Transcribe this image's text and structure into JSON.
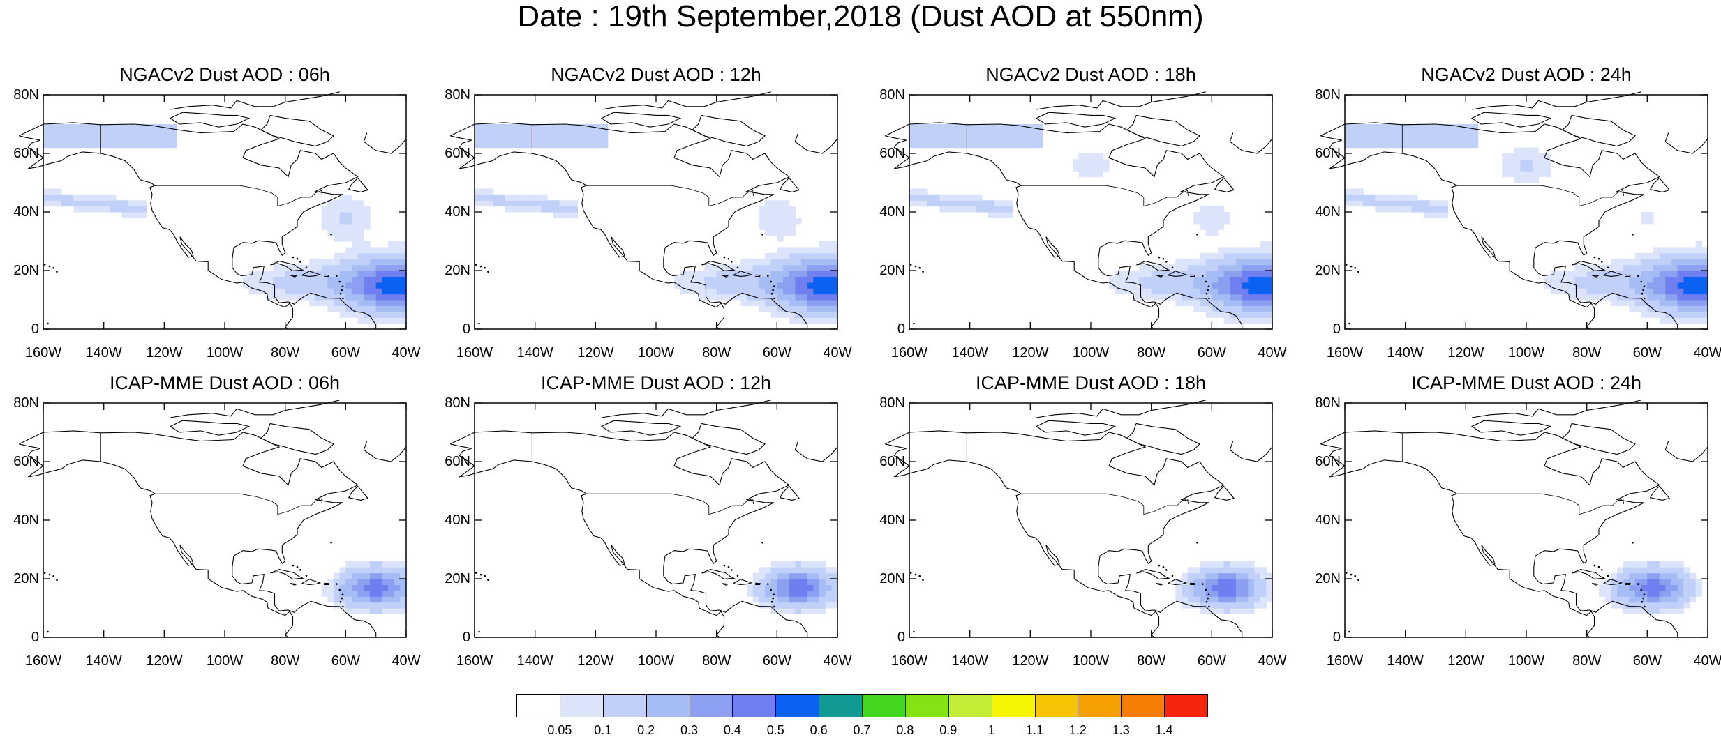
{
  "title": "Date : 19th September,2018 (Dust AOD at 550nm)",
  "panels": [
    {
      "title": "NGACv2 Dust AOD : 06h",
      "model": "ngac",
      "hour": 6
    },
    {
      "title": "NGACv2 Dust AOD : 12h",
      "model": "ngac",
      "hour": 12
    },
    {
      "title": "NGACv2 Dust AOD : 18h",
      "model": "ngac",
      "hour": 18
    },
    {
      "title": "NGACv2 Dust AOD : 24h",
      "model": "ngac",
      "hour": 24
    },
    {
      "title": "ICAP-MME Dust AOD : 06h",
      "model": "icap",
      "hour": 6
    },
    {
      "title": "ICAP-MME Dust AOD : 12h",
      "model": "icap",
      "hour": 12
    },
    {
      "title": "ICAP-MME Dust AOD : 18h",
      "model": "icap",
      "hour": 18
    },
    {
      "title": "ICAP-MME Dust AOD : 24h",
      "model": "icap",
      "hour": 24
    }
  ],
  "map": {
    "lon_range": [
      -160,
      -40
    ],
    "lat_range": [
      0,
      80
    ],
    "lon_ticks": [
      "160W",
      "140W",
      "120W",
      "100W",
      "80W",
      "60W",
      "40W"
    ],
    "lat_ticks": [
      "0",
      "20N",
      "40N",
      "60N",
      "80N"
    ]
  },
  "colorbar": {
    "labels": [
      "0.05",
      "0.1",
      "0.2",
      "0.3",
      "0.4",
      "0.5",
      "0.6",
      "0.7",
      "0.8",
      "0.9",
      "1",
      "1.1",
      "1.2",
      "1.3",
      "1.4"
    ],
    "colors": [
      "#ffffff",
      "#dbe4fb",
      "#c1d0f8",
      "#a6bcf5",
      "#8c9ff0",
      "#6f7ff0",
      "#0b62f2",
      "#0f9a94",
      "#43d81f",
      "#85e313",
      "#c2ee38",
      "#f4f604",
      "#f7c403",
      "#f6a003",
      "#f77d05",
      "#f7250d"
    ]
  },
  "chart_data": {
    "type": "heatmap",
    "variable": "Dust AOD at 550nm",
    "date": "19th September,2018",
    "x_range": [
      -160,
      -40
    ],
    "y_range": [
      0,
      80
    ],
    "levels": [
      0.05,
      0.1,
      0.2,
      0.3,
      0.4,
      0.5,
      0.6,
      0.7,
      0.8,
      0.9,
      1,
      1.1,
      1.2,
      1.3,
      1.4
    ],
    "features": {
      "ngac": {
        "saharan_plume": {
          "lon_center": -42,
          "lat_center": 15,
          "max_aod": 0.5
        },
        "caribbean_haze": {
          "lon_range": [
            -90,
            -60
          ],
          "lat_range": [
            10,
            22
          ],
          "aod": 0.1
        },
        "pacific_bands": {
          "lat_range": [
            30,
            70
          ],
          "aod": 0.1
        }
      },
      "icap": {
        "saharan_plume": {
          "lon_center": -52,
          "lat_center": 17,
          "max_aod": 0.4
        }
      }
    }
  }
}
